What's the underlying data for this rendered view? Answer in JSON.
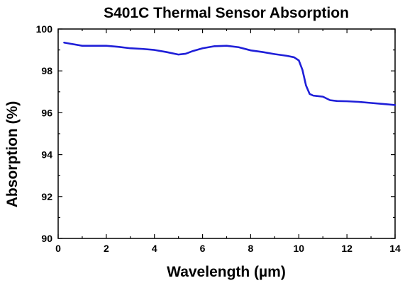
{
  "chart_data": {
    "type": "line",
    "title": "S401C Thermal Sensor Absorption",
    "xlabel": "Wavelength (µm)",
    "ylabel": "Absorption (%)",
    "xlim": [
      0,
      14
    ],
    "ylim": [
      90,
      100
    ],
    "x_ticks": [
      "0",
      "2",
      "4",
      "6",
      "8",
      "10",
      "12",
      "14"
    ],
    "y_ticks": [
      "90",
      "92",
      "94",
      "96",
      "98",
      "100"
    ],
    "grid": false,
    "legend": "none",
    "line_color": "#1f1fd8",
    "series": [
      {
        "x": [
          0.25,
          0.5,
          1.0,
          1.5,
          2.0,
          2.5,
          3.0,
          3.5,
          4.0,
          4.5,
          5.0,
          5.3,
          5.6,
          6.0,
          6.5,
          7.0,
          7.5,
          8.0,
          8.5,
          9.0,
          9.5,
          9.8,
          10.0,
          10.15,
          10.3,
          10.45,
          10.6,
          10.75,
          11.0,
          11.3,
          11.6,
          12.0,
          12.5,
          13.0,
          13.5,
          14.0
        ],
        "y": [
          99.35,
          99.3,
          99.2,
          99.2,
          99.2,
          99.15,
          99.08,
          99.05,
          99.0,
          98.9,
          98.78,
          98.82,
          98.95,
          99.08,
          99.18,
          99.2,
          99.13,
          98.98,
          98.9,
          98.8,
          98.72,
          98.65,
          98.5,
          98.05,
          97.3,
          96.9,
          96.82,
          96.8,
          96.77,
          96.6,
          96.56,
          96.55,
          96.52,
          96.47,
          96.42,
          96.37
        ]
      }
    ]
  }
}
